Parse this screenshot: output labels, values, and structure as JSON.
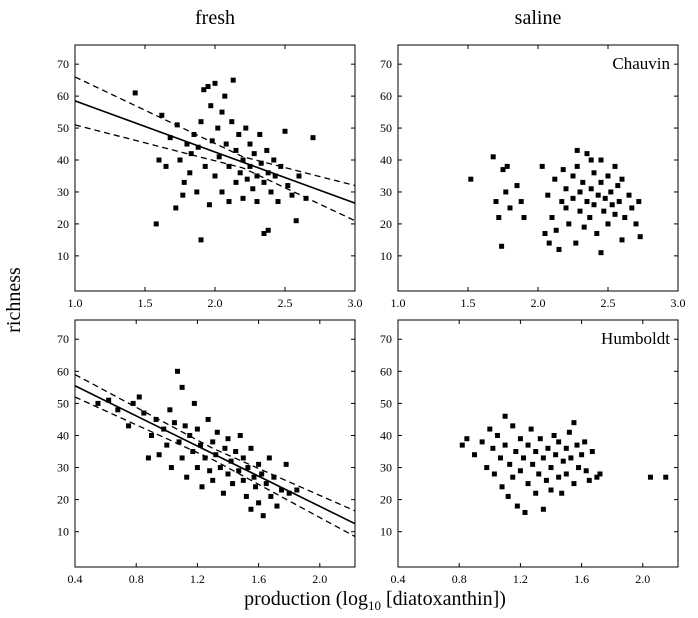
{
  "chart_data": [
    {
      "type": "scatter",
      "title": "fresh",
      "ylabel": "richness",
      "xlim": [
        1.0,
        3.0
      ],
      "ylim": [
        -1,
        76
      ],
      "xticks": [
        {
          "value": 1.0,
          "label": "1.0"
        },
        1.5,
        {
          "value": 2.0,
          "label": "2.0"
        },
        2.5,
        {
          "value": 3.0,
          "label": "3.0"
        }
      ],
      "yticks": [
        10,
        20,
        30,
        40,
        50,
        60,
        70
      ],
      "color": "#000000",
      "x": [
        1.43,
        1.58,
        1.6,
        1.62,
        1.65,
        1.68,
        1.72,
        1.73,
        1.75,
        1.77,
        1.78,
        1.8,
        1.82,
        1.83,
        1.85,
        1.87,
        1.88,
        1.9,
        1.9,
        1.92,
        1.93,
        1.95,
        1.96,
        1.97,
        1.98,
        2.0,
        2.0,
        2.02,
        2.03,
        2.05,
        2.05,
        2.07,
        2.08,
        2.1,
        2.1,
        2.12,
        2.13,
        2.15,
        2.15,
        2.17,
        2.18,
        2.2,
        2.2,
        2.22,
        2.23,
        2.25,
        2.25,
        2.27,
        2.28,
        2.3,
        2.3,
        2.32,
        2.33,
        2.35,
        2.35,
        2.37,
        2.38,
        2.38,
        2.4,
        2.42,
        2.43,
        2.45,
        2.47,
        2.5,
        2.52,
        2.55,
        2.58,
        2.6,
        2.65,
        2.7
      ],
      "values": [
        61,
        20,
        40,
        54,
        38,
        47,
        25,
        51,
        40,
        29,
        33,
        45,
        36,
        42,
        48,
        30,
        44,
        15,
        52,
        62,
        38,
        63,
        26,
        57,
        46,
        64,
        35,
        50,
        41,
        55,
        30,
        60,
        45,
        38,
        27,
        52,
        65,
        33,
        43,
        48,
        36,
        28,
        40,
        50,
        34,
        45,
        38,
        31,
        42,
        35,
        27,
        48,
        39,
        17,
        33,
        43,
        36,
        18,
        30,
        40,
        35,
        27,
        38,
        49,
        32,
        29,
        21,
        35,
        28,
        47
      ],
      "lines": [
        {
          "style": "solid",
          "x": [
            1.0,
            3.0
          ],
          "values": [
            58.5,
            26.5
          ]
        },
        {
          "style": "dashed",
          "x": [
            1.0,
            2.2,
            3.0
          ],
          "values": [
            66,
            41,
            32
          ]
        },
        {
          "style": "dashed",
          "x": [
            1.0,
            2.2,
            3.0
          ],
          "values": [
            51,
            37.5,
            21
          ]
        }
      ]
    },
    {
      "type": "scatter",
      "title": "saline",
      "annotation": "Chauvin",
      "xlim": [
        1.0,
        3.0
      ],
      "ylim": [
        -1,
        76
      ],
      "xticks": [
        {
          "value": 1.0,
          "label": "1.0"
        },
        1.5,
        {
          "value": 2.0,
          "label": "2.0"
        },
        2.5,
        {
          "value": 3.0,
          "label": "3.0"
        }
      ],
      "yticks": [
        10,
        20,
        30,
        40,
        50,
        60,
        70
      ],
      "color": "#000000",
      "x": [
        1.52,
        1.68,
        1.7,
        1.72,
        1.74,
        1.75,
        1.77,
        1.78,
        1.8,
        1.85,
        1.88,
        1.9,
        2.03,
        2.05,
        2.07,
        2.08,
        2.1,
        2.12,
        2.13,
        2.15,
        2.17,
        2.18,
        2.2,
        2.2,
        2.22,
        2.25,
        2.25,
        2.27,
        2.28,
        2.3,
        2.3,
        2.32,
        2.33,
        2.35,
        2.35,
        2.37,
        2.38,
        2.4,
        2.4,
        2.42,
        2.43,
        2.45,
        2.45,
        2.47,
        2.48,
        2.5,
        2.5,
        2.52,
        2.53,
        2.55,
        2.55,
        2.57,
        2.58,
        2.6,
        2.6,
        2.62,
        2.65,
        2.67,
        2.7,
        2.72,
        2.73,
        2.45,
        2.38,
        2.28
      ],
      "values": [
        34,
        41,
        27,
        22,
        13,
        37,
        30,
        38,
        25,
        32,
        27,
        22,
        38,
        17,
        29,
        14,
        22,
        34,
        18,
        12,
        27,
        37,
        25,
        31,
        20,
        35,
        28,
        14,
        38,
        24,
        30,
        33,
        19,
        27,
        42,
        22,
        31,
        36,
        26,
        17,
        29,
        33,
        40,
        24,
        28,
        35,
        20,
        30,
        26,
        38,
        23,
        32,
        27,
        15,
        34,
        22,
        29,
        25,
        20,
        27,
        16,
        11,
        40,
        43
      ]
    },
    {
      "type": "scatter",
      "xlabel": [
        "production (log",
        "10",
        " [diatoxanthin])"
      ],
      "xlim": [
        0.4,
        2.23
      ],
      "ylim": [
        -1,
        76
      ],
      "xticks": [
        0.4,
        0.8,
        1.2,
        1.6,
        {
          "value": 2.0,
          "label": "2.0"
        }
      ],
      "yticks": [
        10,
        20,
        30,
        40,
        50,
        60,
        70
      ],
      "color": "#000000",
      "x": [
        0.55,
        0.62,
        0.68,
        0.75,
        0.78,
        0.82,
        0.85,
        0.88,
        0.9,
        0.93,
        0.95,
        0.98,
        1.0,
        1.02,
        1.03,
        1.05,
        1.07,
        1.08,
        1.1,
        1.1,
        1.12,
        1.13,
        1.15,
        1.17,
        1.18,
        1.2,
        1.2,
        1.22,
        1.23,
        1.25,
        1.27,
        1.28,
        1.3,
        1.3,
        1.32,
        1.33,
        1.35,
        1.37,
        1.38,
        1.4,
        1.4,
        1.42,
        1.43,
        1.45,
        1.47,
        1.48,
        1.5,
        1.5,
        1.52,
        1.53,
        1.55,
        1.55,
        1.57,
        1.58,
        1.6,
        1.6,
        1.62,
        1.63,
        1.65,
        1.67,
        1.68,
        1.7,
        1.72,
        1.75,
        1.78,
        1.8,
        1.85
      ],
      "values": [
        50,
        51,
        48,
        43,
        50,
        52,
        47,
        33,
        40,
        45,
        34,
        42,
        37,
        48,
        30,
        44,
        60,
        38,
        55,
        33,
        43,
        27,
        40,
        35,
        50,
        30,
        42,
        37,
        24,
        33,
        45,
        29,
        38,
        26,
        34,
        41,
        30,
        22,
        36,
        28,
        39,
        32,
        25,
        35,
        29,
        40,
        26,
        33,
        21,
        30,
        36,
        17,
        27,
        24,
        31,
        19,
        28,
        15,
        25,
        33,
        21,
        27,
        18,
        23,
        31,
        22,
        23
      ],
      "lines": [
        {
          "style": "solid",
          "x": [
            0.4,
            2.23
          ],
          "values": [
            55.5,
            12.5
          ]
        },
        {
          "style": "dashed",
          "x": [
            0.4,
            1.3,
            2.23
          ],
          "values": [
            59,
            36,
            16.5
          ]
        },
        {
          "style": "dashed",
          "x": [
            0.4,
            1.3,
            2.23
          ],
          "values": [
            52,
            32.5,
            8.5
          ]
        }
      ]
    },
    {
      "type": "scatter",
      "annotation": "Humboldt",
      "xlim": [
        0.4,
        2.23
      ],
      "ylim": [
        -1,
        76
      ],
      "xticks": [
        0.4,
        0.8,
        1.2,
        1.6,
        {
          "value": 2.0,
          "label": "2.0"
        }
      ],
      "yticks": [
        10,
        20,
        30,
        40,
        50,
        60,
        70
      ],
      "color": "#000000",
      "x": [
        0.82,
        0.85,
        0.9,
        0.95,
        0.98,
        1.0,
        1.02,
        1.03,
        1.05,
        1.07,
        1.08,
        1.1,
        1.1,
        1.12,
        1.13,
        1.15,
        1.15,
        1.17,
        1.18,
        1.2,
        1.2,
        1.22,
        1.23,
        1.25,
        1.25,
        1.27,
        1.28,
        1.3,
        1.3,
        1.32,
        1.33,
        1.35,
        1.35,
        1.37,
        1.38,
        1.4,
        1.4,
        1.42,
        1.43,
        1.45,
        1.45,
        1.47,
        1.48,
        1.5,
        1.5,
        1.52,
        1.53,
        1.55,
        1.55,
        1.57,
        1.58,
        1.6,
        1.62,
        1.63,
        1.65,
        1.67,
        1.7,
        1.72,
        2.05,
        2.15
      ],
      "values": [
        37,
        39,
        34,
        38,
        30,
        42,
        36,
        28,
        40,
        33,
        24,
        46,
        37,
        21,
        31,
        43,
        27,
        35,
        18,
        39,
        29,
        33,
        16,
        37,
        25,
        42,
        31,
        22,
        35,
        28,
        39,
        17,
        33,
        26,
        36,
        30,
        23,
        40,
        34,
        27,
        38,
        22,
        32,
        36,
        28,
        41,
        33,
        25,
        44,
        37,
        30,
        34,
        38,
        29,
        26,
        35,
        27,
        28,
        27,
        27
      ]
    }
  ]
}
